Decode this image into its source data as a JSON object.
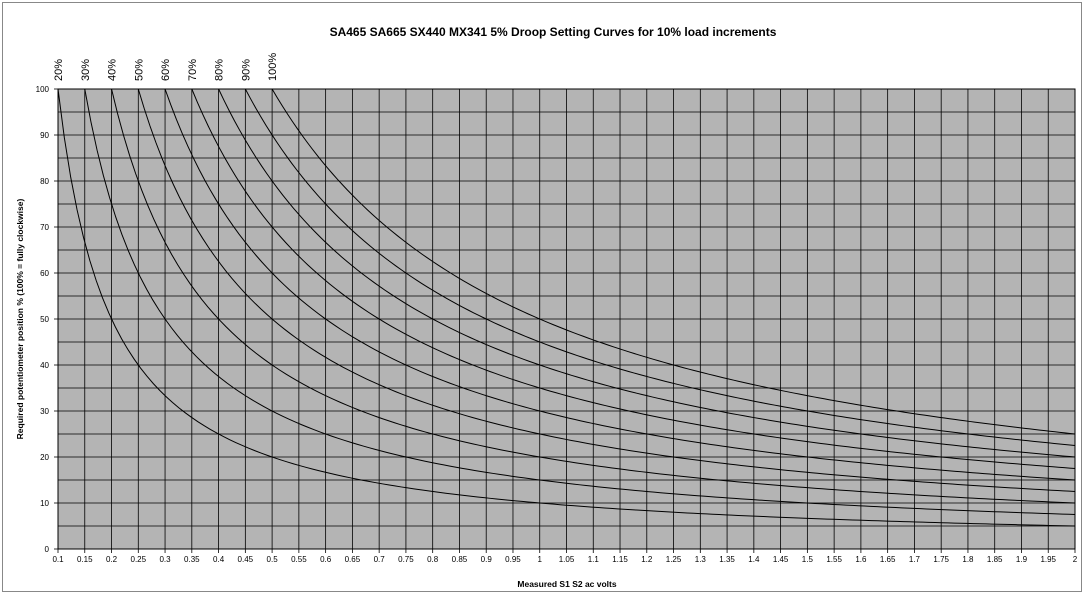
{
  "chart_data": {
    "type": "line",
    "title": "SA465 SA665 SX440 MX341 5% Droop Setting Curves for 10% load increments",
    "xlabel": "Measured S1 S2 ac volts",
    "ylabel": "Required potentiometer position % (100% = fully clockwise)",
    "xlim": [
      0.1,
      2
    ],
    "ylim": [
      0,
      100
    ],
    "grid": true,
    "legend": "none",
    "x_ticks": [
      "0.1",
      "0.15",
      "0.2",
      "0.25",
      "0.3",
      "0.35",
      "0.4",
      "0.45",
      "0.5",
      "0.55",
      "0.6",
      "0.65",
      "0.7",
      "0.75",
      "0.8",
      "0.85",
      "0.9",
      "0.95",
      "1",
      "1.05",
      "1.1",
      "1.15",
      "1.2",
      "1.25",
      "1.3",
      "1.35",
      "1.4",
      "1.45",
      "1.5",
      "1.55",
      "1.6",
      "1.65",
      "1.7",
      "1.75",
      "1.8",
      "1.85",
      "1.9",
      "1.95",
      "2"
    ],
    "y_ticks": [
      "0",
      "10",
      "20",
      "30",
      "40",
      "50",
      "60",
      "70",
      "80",
      "90",
      "100"
    ],
    "colors": {
      "plot_background": "#b4b4b4",
      "grid": "#000000",
      "curve": "#000000"
    },
    "series": [
      {
        "name": "20%",
        "x": [
          0.1,
          0.15,
          0.2,
          0.3,
          0.4,
          0.5,
          0.7,
          1.0,
          1.5,
          2.0
        ],
        "y": [
          100,
          66.7,
          50,
          33.3,
          25,
          20,
          14.3,
          10,
          6.7,
          5
        ]
      },
      {
        "name": "30%",
        "x": [
          0.15,
          0.2,
          0.3,
          0.4,
          0.5,
          0.75,
          1.0,
          1.5,
          2.0
        ],
        "y": [
          100,
          75,
          50,
          37.5,
          30,
          20,
          15,
          10,
          7.5
        ]
      },
      {
        "name": "40%",
        "x": [
          0.2,
          0.25,
          0.3,
          0.4,
          0.5,
          0.8,
          1.0,
          1.6,
          2.0
        ],
        "y": [
          100,
          80,
          66.7,
          50,
          40,
          25,
          20,
          12.5,
          10
        ]
      },
      {
        "name": "50%",
        "x": [
          0.25,
          0.3,
          0.4,
          0.5,
          0.625,
          1.0,
          1.25,
          2.0
        ],
        "y": [
          100,
          83.3,
          62.5,
          50,
          40,
          25,
          20,
          12.5
        ]
      },
      {
        "name": "60%",
        "x": [
          0.3,
          0.4,
          0.5,
          0.6,
          0.75,
          1.0,
          1.5,
          2.0
        ],
        "y": [
          100,
          75,
          60,
          50,
          40,
          30,
          20,
          15
        ]
      },
      {
        "name": "70%",
        "x": [
          0.35,
          0.5,
          0.7,
          0.875,
          1.0,
          1.4,
          1.75,
          2.0
        ],
        "y": [
          100,
          70,
          50,
          40,
          35,
          25,
          20,
          17.5
        ]
      },
      {
        "name": "80%",
        "x": [
          0.4,
          0.5,
          0.8,
          1.0,
          1.6,
          2.0
        ],
        "y": [
          100,
          80,
          50,
          40,
          25,
          20
        ]
      },
      {
        "name": "90%",
        "x": [
          0.45,
          0.6,
          0.9,
          1.125,
          1.5,
          1.8,
          2.0
        ],
        "y": [
          100,
          75,
          50,
          40,
          30,
          25,
          22.5
        ]
      },
      {
        "name": "100%",
        "x": [
          0.5,
          0.625,
          1.0,
          1.25,
          1.6667,
          2.0
        ],
        "y": [
          100,
          80,
          50,
          40,
          30,
          25
        ]
      }
    ]
  }
}
